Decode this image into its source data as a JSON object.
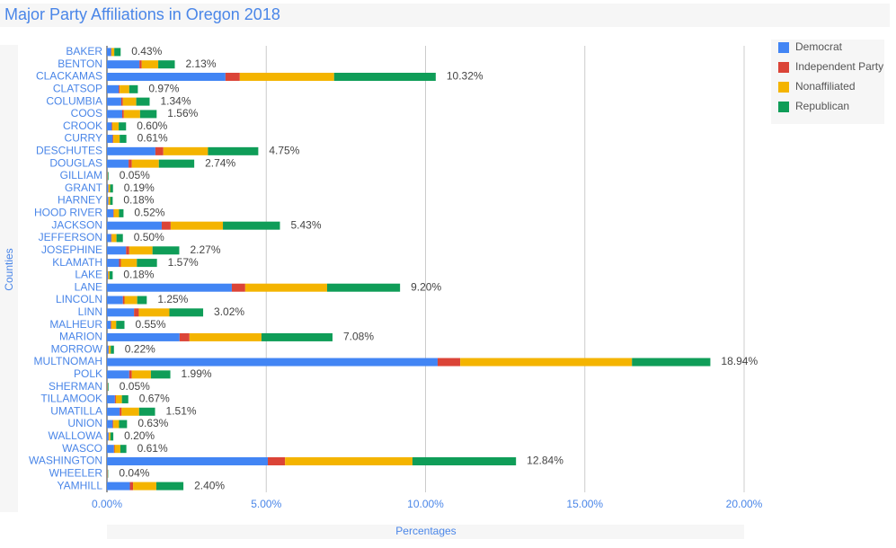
{
  "chart_data": {
    "type": "stacked-bar-horizontal",
    "title": "Major Party Affiliations in Oregon 2018",
    "x_label": "Percentages",
    "y_label": "Counties",
    "categories": [
      "BAKER",
      "BENTON",
      "CLACKAMAS",
      "CLATSOP",
      "COLUMBIA",
      "COOS",
      "CROOK",
      "CURRY",
      "DESCHUTES",
      "DOUGLAS",
      "GILLIAM",
      "GRANT",
      "HARNEY",
      "HOOD RIVER",
      "JACKSON",
      "JEFFERSON",
      "JOSEPHINE",
      "KLAMATH",
      "LAKE",
      "LANE",
      "LINCOLN",
      "LINN",
      "MALHEUR",
      "MARION",
      "MORROW",
      "MULTNOMAH",
      "POLK",
      "SHERMAN",
      "TILLAMOOK",
      "UMATILLA",
      "UNION",
      "WALLOWA",
      "WASCO",
      "WASHINGTON",
      "WHEELER",
      "YAMHILL"
    ],
    "series": [
      {
        "name": "Democrat",
        "color": "#4285f4",
        "values": [
          0.13,
          1.02,
          3.72,
          0.37,
          0.45,
          0.48,
          0.15,
          0.18,
          1.52,
          0.68,
          0.01,
          0.04,
          0.04,
          0.2,
          1.72,
          0.13,
          0.6,
          0.38,
          0.03,
          3.92,
          0.5,
          0.85,
          0.12,
          2.28,
          0.05,
          10.38,
          0.7,
          0.01,
          0.25,
          0.4,
          0.18,
          0.05,
          0.22,
          5.05,
          0.01,
          0.72
        ]
      },
      {
        "name": "Independent Party",
        "color": "#db4437",
        "values": [
          0.01,
          0.07,
          0.45,
          0.03,
          0.05,
          0.05,
          0.02,
          0.02,
          0.25,
          0.1,
          0.01,
          0.01,
          0.01,
          0.02,
          0.28,
          0.02,
          0.1,
          0.06,
          0.01,
          0.42,
          0.05,
          0.15,
          0.02,
          0.31,
          0.01,
          0.71,
          0.08,
          0.01,
          0.03,
          0.06,
          0.02,
          0.01,
          0.02,
          0.54,
          0.01,
          0.1
        ]
      },
      {
        "name": "Nonaffiliated",
        "color": "#f4b400",
        "values": [
          0.09,
          0.52,
          2.96,
          0.3,
          0.42,
          0.51,
          0.2,
          0.2,
          1.4,
          0.85,
          0.01,
          0.05,
          0.05,
          0.16,
          1.64,
          0.15,
          0.73,
          0.5,
          0.04,
          2.57,
          0.4,
          0.96,
          0.15,
          2.26,
          0.06,
          5.39,
          0.6,
          0.01,
          0.19,
          0.55,
          0.18,
          0.05,
          0.18,
          4.0,
          0.01,
          0.73
        ]
      },
      {
        "name": "Republican",
        "color": "#0f9d58",
        "values": [
          0.2,
          0.52,
          3.19,
          0.27,
          0.42,
          0.52,
          0.23,
          0.21,
          1.58,
          1.11,
          0.02,
          0.09,
          0.08,
          0.14,
          1.79,
          0.2,
          0.84,
          0.63,
          0.1,
          2.29,
          0.3,
          1.06,
          0.26,
          2.23,
          0.1,
          2.46,
          0.61,
          0.02,
          0.2,
          0.5,
          0.25,
          0.09,
          0.19,
          3.25,
          0.01,
          0.85
        ]
      }
    ],
    "totals": [
      0.43,
      2.13,
      10.32,
      0.97,
      1.34,
      1.56,
      0.6,
      0.61,
      4.75,
      2.74,
      0.05,
      0.19,
      0.18,
      0.52,
      5.43,
      0.5,
      2.27,
      1.57,
      0.18,
      9.2,
      1.25,
      3.02,
      0.55,
      7.08,
      0.22,
      18.94,
      1.99,
      0.05,
      0.67,
      1.51,
      0.63,
      0.2,
      0.61,
      12.84,
      0.04,
      2.4
    ],
    "total_labels": [
      "0.43%",
      "2.13%",
      "10.32%",
      "0.97%",
      "1.34%",
      "1.56%",
      "0.60%",
      "0.61%",
      "4.75%",
      "2.74%",
      "0.05%",
      "0.19%",
      "0.18%",
      "0.52%",
      "5.43%",
      "0.50%",
      "2.27%",
      "1.57%",
      "0.18%",
      "9.20%",
      "1.25%",
      "3.02%",
      "0.55%",
      "7.08%",
      "0.22%",
      "18.94%",
      "1.99%",
      "0.05%",
      "0.67%",
      "1.51%",
      "0.63%",
      "0.20%",
      "0.61%",
      "12.84%",
      "0.04%",
      "2.40%"
    ],
    "xlim": [
      0,
      20
    ],
    "xticks": [
      {
        "value": 0,
        "label": "0.00%"
      },
      {
        "value": 5,
        "label": "5.00%"
      },
      {
        "value": 10,
        "label": "10.00%"
      },
      {
        "value": 15,
        "label": "15.00%"
      },
      {
        "value": 20,
        "label": "20.00%"
      }
    ],
    "grid": true,
    "legend": "right"
  }
}
